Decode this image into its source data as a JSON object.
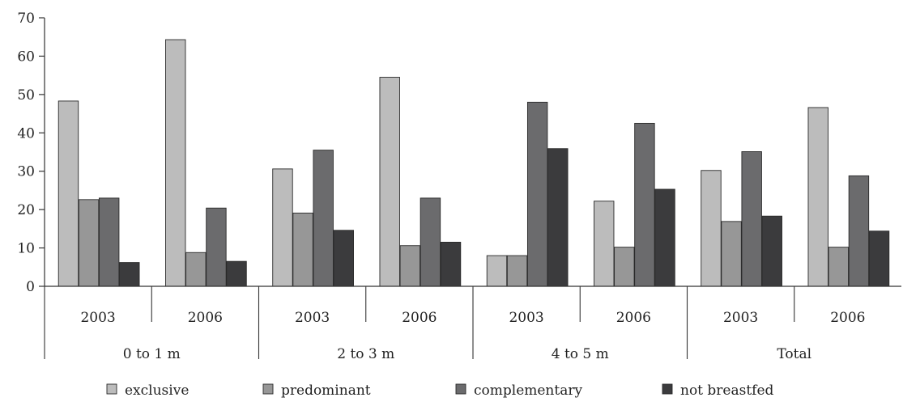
{
  "chart_data": {
    "type": "bar",
    "title": "",
    "xlabel": "",
    "ylabel": "",
    "ylim": [
      0,
      70
    ],
    "yticks": [
      0,
      10,
      20,
      30,
      40,
      50,
      60,
      70
    ],
    "grid": false,
    "legend_position": "bottom",
    "groups": [
      {
        "label": "0 to 1 m",
        "years": [
          "2003",
          "2006"
        ]
      },
      {
        "label": "2 to 3 m",
        "years": [
          "2003",
          "2006"
        ]
      },
      {
        "label": "4 to 5 m",
        "years": [
          "2003",
          "2006"
        ]
      },
      {
        "label": "Total",
        "years": [
          "2003",
          "2006"
        ]
      }
    ],
    "categories": [
      "0 to 1 m 2003",
      "0 to 1 m 2006",
      "2 to 3 m 2003",
      "2 to 3 m 2006",
      "4 to 5 m 2003",
      "4 to 5 m 2006",
      "Total 2003",
      "Total 2006"
    ],
    "series": [
      {
        "name": "exclusive",
        "color": "#bcbcbc",
        "values": [
          48.3,
          64.3,
          30.6,
          54.5,
          8.0,
          22.2,
          30.2,
          46.6
        ]
      },
      {
        "name": "predominant",
        "color": "#979797",
        "values": [
          22.6,
          8.8,
          19.1,
          10.6,
          8.0,
          10.2,
          16.9,
          10.2
        ]
      },
      {
        "name": "complementary",
        "color": "#6b6b6d",
        "values": [
          23.0,
          20.4,
          35.5,
          23.0,
          48.0,
          42.5,
          35.1,
          28.8
        ]
      },
      {
        "name": "not breastfed",
        "color": "#3b3b3d",
        "values": [
          6.2,
          6.5,
          14.6,
          11.5,
          35.9,
          25.3,
          18.3,
          14.4
        ]
      }
    ]
  }
}
